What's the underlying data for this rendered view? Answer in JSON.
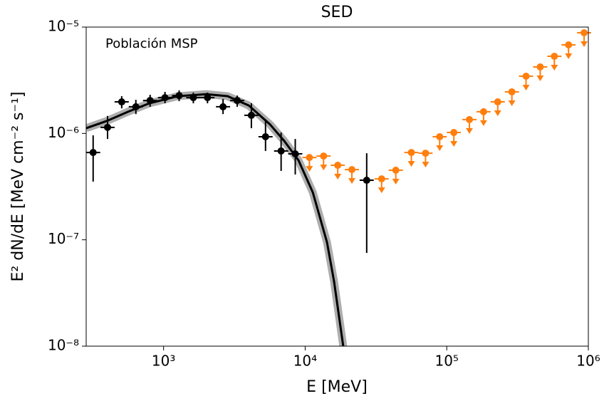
{
  "chart_data": {
    "type": "scatter",
    "title": "SED",
    "annotation": "Población MSP",
    "xlabel": "E [MeV]",
    "ylabel": "E² dN/dE [MeV cm⁻² s⁻¹]",
    "xscale": "log",
    "yscale": "log",
    "xlim": [
      284,
      1000000
    ],
    "ylim": [
      1e-08,
      1e-05
    ],
    "xticks": [
      {
        "value": 1000,
        "label": "10³"
      },
      {
        "value": 10000,
        "label": "10⁴"
      },
      {
        "value": 100000,
        "label": "10⁵"
      },
      {
        "value": 1000000,
        "label": "10⁶"
      }
    ],
    "yticks": [
      {
        "value": 1e-08,
        "label": "10⁻⁸"
      },
      {
        "value": 1e-07,
        "label": "10⁻⁷"
      },
      {
        "value": 1e-06,
        "label": "10⁻⁶"
      },
      {
        "value": 1e-05,
        "label": "10⁻⁵"
      }
    ],
    "model": {
      "color": "#000000",
      "band_color": "#999999",
      "x": [
        284,
        397,
        561,
        794,
        1259,
        2000,
        2831,
        4000,
        5663,
        7129,
        8974,
        11324,
        14256,
        15996,
        18570
      ],
      "values": [
        1.12e-06,
        1.31e-06,
        1.6e-06,
        1.92e-06,
        2.24e-06,
        2.34e-06,
        2.24e-06,
        1.83e-06,
        1.21e-06,
        8.47e-07,
        5.58e-07,
        2.79e-07,
        9.48e-08,
        4.06e-08,
        1e-08
      ]
    },
    "points": {
      "color": "#000000",
      "xerr_dex": 0.05,
      "x": [
        318,
        402,
        506,
        637,
        803,
        1023,
        1288,
        1622,
        2042,
        2630,
        3311,
        4169,
        5248,
        6761,
        8511,
        27200
      ],
      "values": [
        6.62e-07,
        1.14e-06,
        1.98e-06,
        1.78e-06,
        2.04e-06,
        2.17e-06,
        2.27e-06,
        2.17e-06,
        2.17e-06,
        1.78e-06,
        2.04e-06,
        1.48e-06,
        9.31e-07,
        6.84e-07,
        6.43e-07,
        3.63e-07
      ],
      "lower": [
        3.52e-07,
        8.87e-07,
        1.72e-06,
        1.52e-06,
        1.78e-06,
        1.92e-06,
        2.01e-06,
        1.92e-06,
        1.92e-06,
        1.52e-06,
        1.78e-06,
        1.12e-06,
        6.84e-07,
        4.44e-07,
        4.11e-07,
        7.53e-08
      ],
      "upper": [
        9.59e-07,
        1.46e-06,
        2.24e-06,
        2.07e-06,
        2.31e-06,
        2.46e-06,
        2.54e-06,
        2.42e-06,
        2.42e-06,
        2.11e-06,
        2.27e-06,
        1.92e-06,
        1.31e-06,
        1.02e-06,
        8.87e-07,
        6.52e-07
      ]
    },
    "upper_limits": {
      "color": "#ff7f0e",
      "xerr_dex": 0.05,
      "x": [
        10715,
        13490,
        16982,
        21380,
        34674,
        43652,
        56234,
        70795,
        89125,
        112202,
        144544,
        181970,
        229087,
        288403,
        363078,
        457088,
        575440,
        724436,
        933254
      ],
      "values": [
        5.94e-07,
        6.13e-07,
        5.02e-07,
        4.57e-07,
        3.74e-07,
        4.51e-07,
        6.62e-07,
        6.52e-07,
        9.31e-07,
        1.02e-06,
        1.35e-06,
        1.6e-06,
        1.98e-06,
        2.46e-06,
        3.45e-06,
        4.22e-06,
        5.31e-06,
        6.8e-06,
        8.84e-06
      ]
    }
  }
}
